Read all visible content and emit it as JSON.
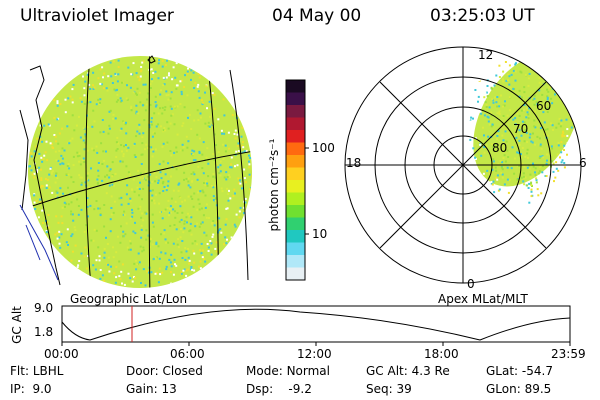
{
  "header": {
    "instrument": "Ultraviolet Imager",
    "date": "04 May 00",
    "time": "03:25:03 UT"
  },
  "colorbar": {
    "unit_label": "photon cm⁻²s⁻¹",
    "ticks": [
      "100",
      "10"
    ],
    "colors": [
      "#1a0a22",
      "#3a1048",
      "#7a1a40",
      "#b01830",
      "#e02020",
      "#ff6a10",
      "#ffa010",
      "#ffd020",
      "#e8f020",
      "#b0f020",
      "#70e030",
      "#30d070",
      "#20c8c0",
      "#60d8f0",
      "#b0e8f8",
      "#e8f0f4"
    ]
  },
  "geo_panel": {
    "label": "Geographic Lat/Lon"
  },
  "polar_panel": {
    "label": "Apex MLat/MLT",
    "mlt_labels": {
      "top": "12",
      "bottom": "0",
      "left": "18",
      "right": "6"
    },
    "lat_labels": [
      "60",
      "70",
      "80"
    ]
  },
  "altitude_plot": {
    "ylabel": "GC Alt",
    "yticks": [
      "9.0",
      "1.8"
    ],
    "xticks": [
      "00:00",
      "06:00",
      "12:00",
      "18:00",
      "23:59"
    ],
    "marker_time": "03:25"
  },
  "info": {
    "flt_label": "Flt:",
    "flt_value": "LBHL",
    "ip_label": "IP:",
    "ip_value": "9.0",
    "door_label": "Door:",
    "door_value": "Closed",
    "gain_label": "Gain:",
    "gain_value": "13",
    "mode_label": "Mode:",
    "mode_value": "Normal",
    "dsp_label": "Dsp:",
    "dsp_value": "-9.2",
    "gcalt_label": "GC Alt:",
    "gcalt_value": "4.3 Re",
    "seq_label": "Seq:",
    "seq_value": "39",
    "glat_label": "GLat:",
    "glat_value": "-54.7",
    "glon_label": "GLon:",
    "glon_value": "89.5"
  },
  "colors": {
    "yellow_green": "#d8ec40",
    "green": "#9ee040",
    "cyan": "#40c8d8",
    "marker": "#d02020"
  }
}
